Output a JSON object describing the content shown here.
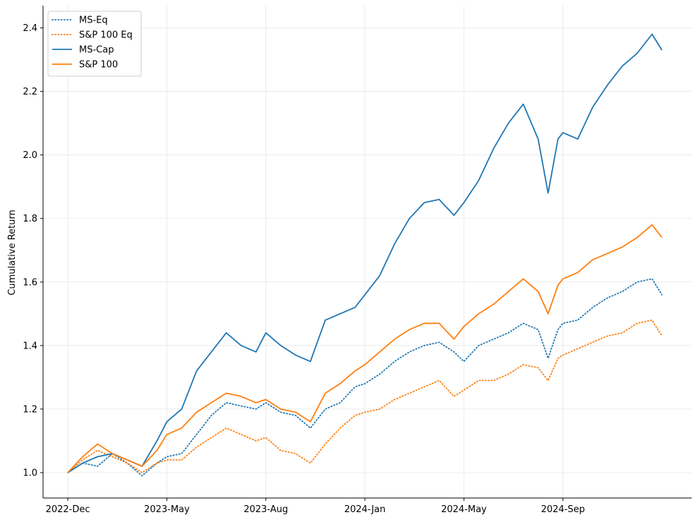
{
  "chart_data": {
    "type": "line",
    "title": "",
    "xlabel": "",
    "ylabel": "Cumulative Return",
    "ylim": [
      0.92,
      2.47
    ],
    "yticks": [
      1.0,
      1.2,
      1.4,
      1.6,
      1.8,
      2.0,
      2.2,
      2.4
    ],
    "ytick_labels": [
      "1.0",
      "1.2",
      "1.4",
      "1.6",
      "1.8",
      "2.0",
      "2.2",
      "2.4"
    ],
    "xticks": [
      0,
      1,
      2,
      3,
      4,
      5
    ],
    "xtick_labels": [
      "2022-Dec",
      "2023-May",
      "2023-Aug",
      "2024-Jan",
      "2024-May",
      "2024-Sep"
    ],
    "xlim": [
      -0.25,
      6.3
    ],
    "grid": true,
    "legend_position": "top-left",
    "series": [
      {
        "name": "MS-Eq",
        "color": "#1f77b4",
        "style": "dotted",
        "x": [
          0,
          0.15,
          0.3,
          0.45,
          0.6,
          0.75,
          0.9,
          1.0,
          1.15,
          1.3,
          1.45,
          1.6,
          1.75,
          1.9,
          2.0,
          2.15,
          2.3,
          2.45,
          2.6,
          2.75,
          2.9,
          3.0,
          3.15,
          3.3,
          3.45,
          3.6,
          3.75,
          3.9,
          4.0,
          4.15,
          4.3,
          4.45,
          4.6,
          4.75,
          4.85,
          4.95,
          5.0,
          5.15,
          5.3,
          5.45,
          5.6,
          5.75,
          5.9,
          6.0
        ],
        "values": [
          1.0,
          1.03,
          1.02,
          1.06,
          1.03,
          0.99,
          1.03,
          1.05,
          1.06,
          1.12,
          1.18,
          1.22,
          1.21,
          1.2,
          1.22,
          1.19,
          1.18,
          1.14,
          1.2,
          1.22,
          1.27,
          1.28,
          1.31,
          1.35,
          1.38,
          1.4,
          1.41,
          1.38,
          1.35,
          1.4,
          1.42,
          1.44,
          1.47,
          1.45,
          1.36,
          1.45,
          1.47,
          1.48,
          1.52,
          1.55,
          1.57,
          1.6,
          1.61,
          1.56
        ]
      },
      {
        "name": "S&P 100 Eq",
        "color": "#ff7f0e",
        "style": "dotted",
        "x": [
          0,
          0.15,
          0.3,
          0.45,
          0.6,
          0.75,
          0.9,
          1.0,
          1.15,
          1.3,
          1.45,
          1.6,
          1.75,
          1.9,
          2.0,
          2.15,
          2.3,
          2.45,
          2.6,
          2.75,
          2.9,
          3.0,
          3.15,
          3.3,
          3.45,
          3.6,
          3.75,
          3.9,
          4.0,
          4.15,
          4.3,
          4.45,
          4.6,
          4.75,
          4.85,
          4.95,
          5.0,
          5.15,
          5.3,
          5.45,
          5.6,
          5.75,
          5.9,
          6.0
        ],
        "values": [
          1.0,
          1.04,
          1.07,
          1.05,
          1.03,
          1.0,
          1.03,
          1.04,
          1.04,
          1.08,
          1.11,
          1.14,
          1.12,
          1.1,
          1.11,
          1.07,
          1.06,
          1.03,
          1.09,
          1.14,
          1.18,
          1.19,
          1.2,
          1.23,
          1.25,
          1.27,
          1.29,
          1.24,
          1.26,
          1.29,
          1.29,
          1.31,
          1.34,
          1.33,
          1.29,
          1.36,
          1.37,
          1.39,
          1.41,
          1.43,
          1.44,
          1.47,
          1.48,
          1.43
        ]
      },
      {
        "name": "MS-Cap",
        "color": "#1f77b4",
        "style": "solid",
        "x": [
          0,
          0.15,
          0.3,
          0.45,
          0.6,
          0.75,
          0.9,
          1.0,
          1.15,
          1.3,
          1.45,
          1.6,
          1.75,
          1.9,
          2.0,
          2.15,
          2.3,
          2.45,
          2.6,
          2.75,
          2.9,
          3.0,
          3.15,
          3.3,
          3.45,
          3.6,
          3.75,
          3.9,
          4.0,
          4.15,
          4.3,
          4.45,
          4.6,
          4.75,
          4.85,
          4.95,
          5.0,
          5.15,
          5.3,
          5.45,
          5.6,
          5.75,
          5.9,
          6.0
        ],
        "values": [
          1.0,
          1.03,
          1.05,
          1.06,
          1.04,
          1.02,
          1.1,
          1.16,
          1.2,
          1.32,
          1.38,
          1.44,
          1.4,
          1.38,
          1.44,
          1.4,
          1.37,
          1.35,
          1.48,
          1.5,
          1.52,
          1.56,
          1.62,
          1.72,
          1.8,
          1.85,
          1.86,
          1.81,
          1.85,
          1.92,
          2.02,
          2.1,
          2.16,
          2.05,
          1.88,
          2.05,
          2.07,
          2.05,
          2.15,
          2.22,
          2.28,
          2.32,
          2.38,
          2.33
        ]
      },
      {
        "name": "S&P 100",
        "color": "#ff7f0e",
        "style": "solid",
        "x": [
          0,
          0.15,
          0.3,
          0.45,
          0.6,
          0.75,
          0.9,
          1.0,
          1.15,
          1.3,
          1.45,
          1.6,
          1.75,
          1.9,
          2.0,
          2.15,
          2.3,
          2.45,
          2.6,
          2.75,
          2.9,
          3.0,
          3.15,
          3.3,
          3.45,
          3.6,
          3.75,
          3.9,
          4.0,
          4.15,
          4.3,
          4.45,
          4.6,
          4.75,
          4.85,
          4.95,
          5.0,
          5.15,
          5.3,
          5.45,
          5.6,
          5.75,
          5.9,
          6.0
        ],
        "values": [
          1.0,
          1.05,
          1.09,
          1.06,
          1.04,
          1.02,
          1.07,
          1.12,
          1.14,
          1.19,
          1.22,
          1.25,
          1.24,
          1.22,
          1.23,
          1.2,
          1.19,
          1.16,
          1.25,
          1.28,
          1.32,
          1.34,
          1.38,
          1.42,
          1.45,
          1.47,
          1.47,
          1.42,
          1.46,
          1.5,
          1.53,
          1.57,
          1.61,
          1.57,
          1.5,
          1.59,
          1.61,
          1.63,
          1.67,
          1.69,
          1.71,
          1.74,
          1.78,
          1.74
        ]
      }
    ]
  }
}
